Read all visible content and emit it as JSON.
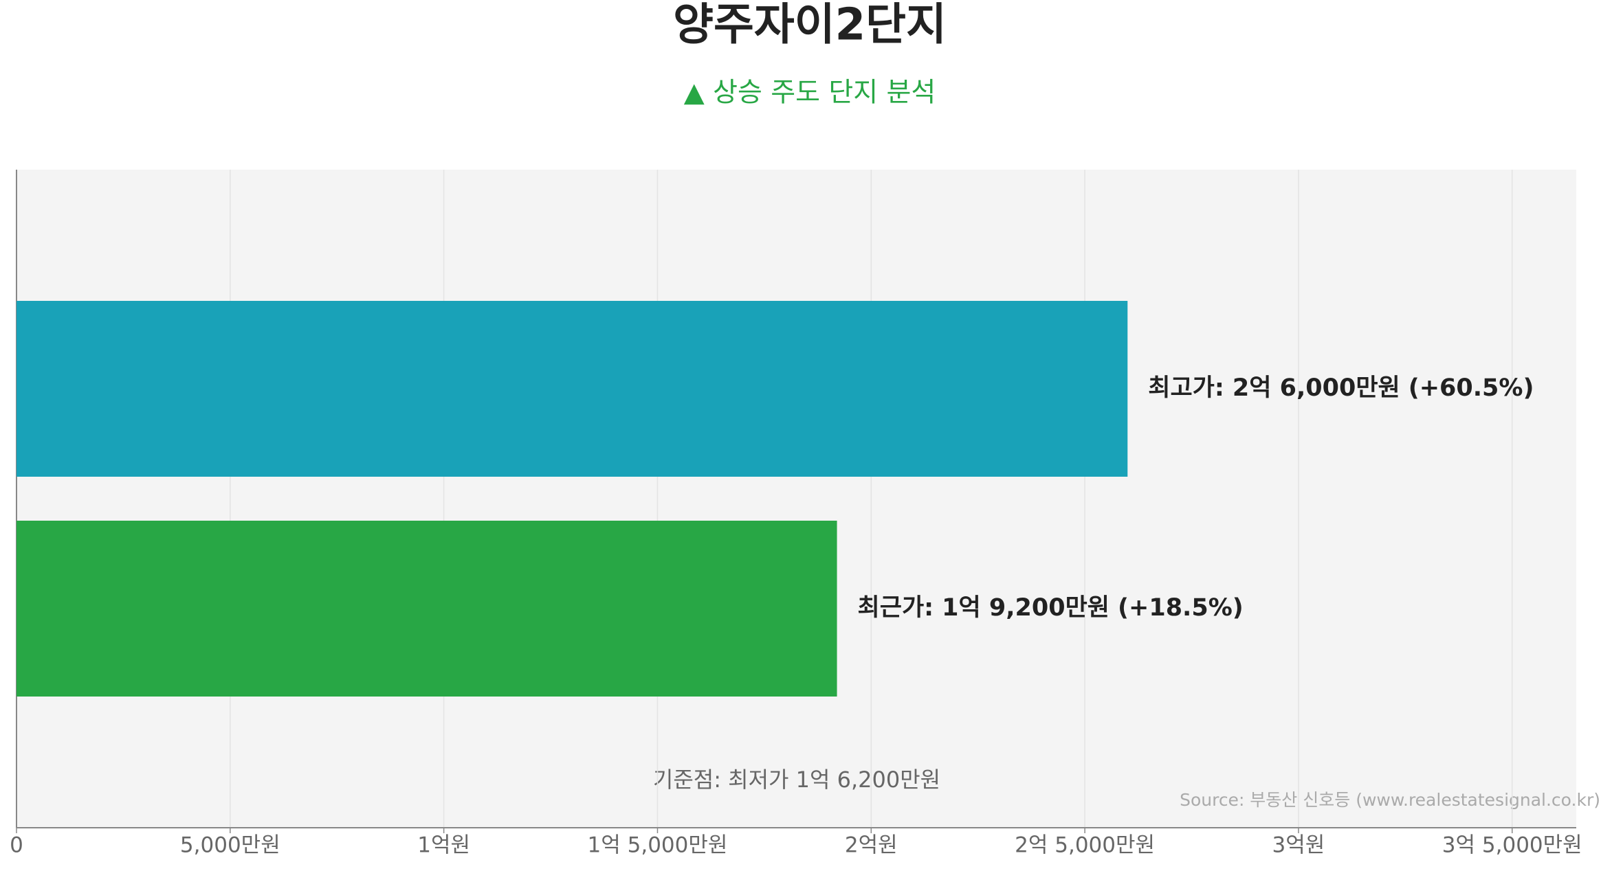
{
  "chart_data": {
    "type": "bar",
    "orientation": "horizontal",
    "title": "양주자이2단지",
    "subtitle": "▲ 상승 주도 단지 분석",
    "categories": [
      "최고가:",
      "최근가:"
    ],
    "series": [
      {
        "name": "price",
        "colors": [
          "#19a2b8",
          "#28a745"
        ],
        "values": [
          26000,
          19200
        ],
        "value_labels": [
          "2억 6,000만원",
          "1억 9,200만원"
        ],
        "change_labels": [
          "(+60.5%)",
          "(+18.5%)"
        ]
      }
    ],
    "xlim": [
      0,
      36500
    ],
    "xticks": [
      0,
      {
        "value": 5000,
        "label": "5,000만원"
      },
      {
        "value": 10000,
        "label": "1억원"
      },
      {
        "value": 15000,
        "label": "1억 5,000만원"
      },
      {
        "value": 20000,
        "label": "2억원"
      },
      {
        "value": 25000,
        "label": "2억 5,000만원"
      },
      {
        "value": 30000,
        "label": "3억원"
      },
      {
        "value": 35000,
        "label": "3억 5,000만원"
      }
    ],
    "grid": true,
    "annotation": "기준점: 최저가 1억 6,200만원",
    "source": "Source: 부동산 신호등 (www.realestatesignal.co.kr)"
  }
}
